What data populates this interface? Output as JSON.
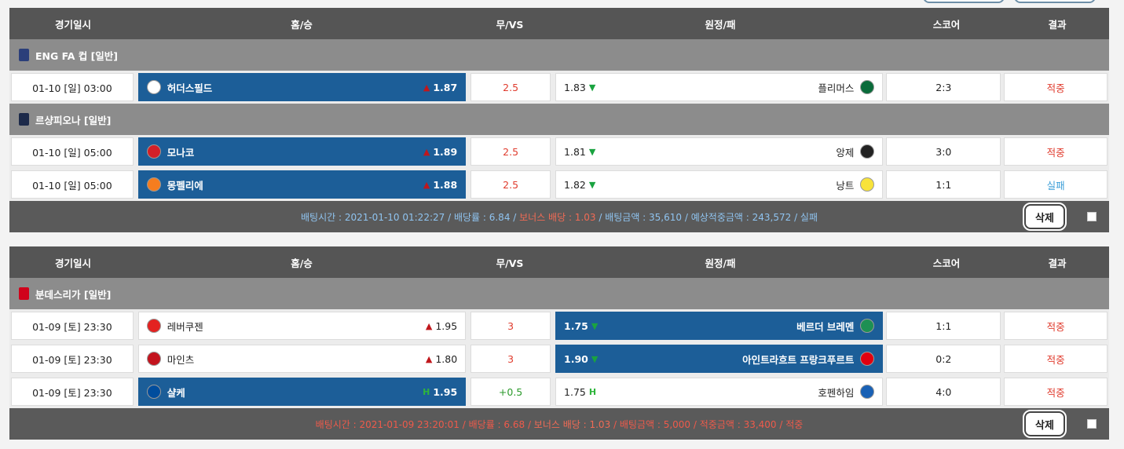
{
  "header": {
    "date": "경기일시",
    "home": "홈/승",
    "draw": "무/VS",
    "away": "원정/패",
    "score": "스코어",
    "result": "결과"
  },
  "slips": [
    {
      "summary": {
        "time": "배팅시간 : 2021-01-10 01:22:27",
        "odds": "배당률 : 6.84",
        "bonus": "보너스 배당 : 1.03",
        "amount": "배팅금액 : 35,610",
        "expected": "예상적중금액 : 243,572",
        "status": "실패",
        "delete": "삭제"
      },
      "leagues": [
        {
          "name": "ENG FA 컵 [일반]",
          "icon_color": "#2b3f7a",
          "rows": [
            {
              "date": "01-10 [일] 03:00",
              "home": "허더스필드",
              "home_odds": "1.87",
              "home_arrow": "up",
              "home_sel": true,
              "draw": "2.5",
              "away_odds": "1.83",
              "away_arrow": "down",
              "away": "플리머스",
              "away_sel": false,
              "score": "2:3",
              "result": "적중"
            }
          ]
        },
        {
          "name": "르샹피오나 [일반]",
          "icon_color": "#1d2a4a",
          "rows": [
            {
              "date": "01-10 [일] 05:00",
              "home": "모나코",
              "home_odds": "1.89",
              "home_arrow": "up",
              "home_sel": true,
              "draw": "2.5",
              "away_odds": "1.81",
              "away_arrow": "down",
              "away": "앙제",
              "away_sel": false,
              "score": "3:0",
              "result": "적중"
            },
            {
              "date": "01-10 [일] 05:00",
              "home": "몽펠리에",
              "home_odds": "1.88",
              "home_arrow": "up",
              "home_sel": true,
              "draw": "2.5",
              "away_odds": "1.82",
              "away_arrow": "down",
              "away": "낭트",
              "away_sel": false,
              "score": "1:1",
              "result": "실패"
            }
          ]
        }
      ]
    },
    {
      "summary": {
        "time": "배팅시간 : 2021-01-09 23:20:01",
        "odds": "배당률 : 6.68",
        "bonus": "보너스 배당 : 1.03",
        "amount": "배팅금액 : 5,000",
        "expected": "적중금액 : 33,400",
        "status": "적중",
        "delete": "삭제"
      },
      "leagues": [
        {
          "name": "분데스리가 [일반]",
          "icon_color": "#d0021b",
          "rows": [
            {
              "date": "01-09 [토] 23:30",
              "home": "레버쿠젠",
              "home_odds": "1.95",
              "home_arrow": "up",
              "home_sel": false,
              "draw": "3",
              "away_odds": "1.75",
              "away_arrow": "down",
              "away": "베르더 브레멘",
              "away_sel": true,
              "score": "1:1",
              "result": "적중"
            },
            {
              "date": "01-09 [토] 23:30",
              "home": "마인츠",
              "home_odds": "1.80",
              "home_arrow": "up",
              "home_sel": false,
              "draw": "3",
              "away_odds": "1.90",
              "away_arrow": "down",
              "away": "아인트라흐트 프랑크푸르트",
              "away_sel": true,
              "score": "0:2",
              "result": "적중"
            },
            {
              "date": "01-09 [토] 23:30",
              "home": "샬케",
              "home_odds": "1.95",
              "home_arrow": "h",
              "home_sel": true,
              "draw": "+0.5",
              "away_odds": "1.75",
              "away_arrow": "h",
              "away": "호펜하임",
              "away_sel": false,
              "score": "4:0",
              "result": "적중",
              "draw_green": true
            }
          ]
        }
      ]
    }
  ],
  "colors": {
    "selected": "#1c5e98",
    "win": "#e03c2e",
    "lose": "#3b9ed8"
  },
  "icons": {
    "up": "arrow-up-icon",
    "down": "arrow-down-icon",
    "h": "handicap-icon"
  }
}
